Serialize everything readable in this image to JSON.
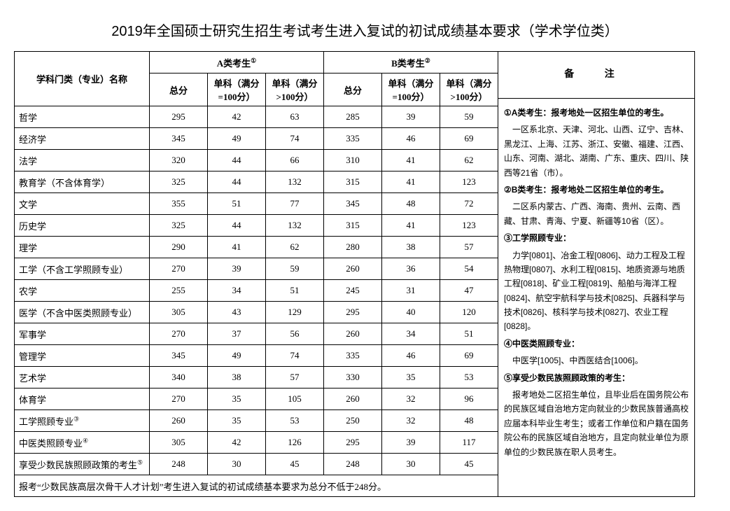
{
  "title": "2019年全国硕士研究生招生考试考生进入复试的初试成绩基本要求（学术学位类）",
  "headers": {
    "subject": "学科门类（专业）名称",
    "groupA": "A类考生",
    "groupB": "B类考生",
    "total": "总分",
    "sub100": "单科（满分=100分）",
    "subOver100": "单科（满分>100分）",
    "notes": "备    注"
  },
  "rows": [
    {
      "name": "哲学",
      "a": [
        295,
        42,
        63
      ],
      "b": [
        285,
        39,
        59
      ]
    },
    {
      "name": "经济学",
      "a": [
        345,
        49,
        74
      ],
      "b": [
        335,
        46,
        69
      ]
    },
    {
      "name": "法学",
      "a": [
        320,
        44,
        66
      ],
      "b": [
        310,
        41,
        62
      ]
    },
    {
      "name": "教育学（不含体育学）",
      "a": [
        325,
        44,
        132
      ],
      "b": [
        315,
        41,
        123
      ]
    },
    {
      "name": "文学",
      "a": [
        355,
        51,
        77
      ],
      "b": [
        345,
        48,
        72
      ]
    },
    {
      "name": "历史学",
      "a": [
        325,
        44,
        132
      ],
      "b": [
        315,
        41,
        123
      ]
    },
    {
      "name": "理学",
      "a": [
        290,
        41,
        62
      ],
      "b": [
        280,
        38,
        57
      ]
    },
    {
      "name": "工学（不含工学照顾专业）",
      "a": [
        270,
        39,
        59
      ],
      "b": [
        260,
        36,
        54
      ]
    },
    {
      "name": "农学",
      "a": [
        255,
        34,
        51
      ],
      "b": [
        245,
        31,
        47
      ]
    },
    {
      "name": "医学（不含中医类照顾专业）",
      "a": [
        305,
        43,
        129
      ],
      "b": [
        295,
        40,
        120
      ]
    },
    {
      "name": "军事学",
      "a": [
        270,
        37,
        56
      ],
      "b": [
        260,
        34,
        51
      ]
    },
    {
      "name": "管理学",
      "a": [
        345,
        49,
        74
      ],
      "b": [
        335,
        46,
        69
      ]
    },
    {
      "name": "艺术学",
      "a": [
        340,
        38,
        57
      ],
      "b": [
        330,
        35,
        53
      ]
    },
    {
      "name": "体育学",
      "a": [
        270,
        35,
        105
      ],
      "b": [
        260,
        32,
        96
      ]
    },
    {
      "name": "工学照顾专业",
      "sup": "③",
      "a": [
        260,
        35,
        53
      ],
      "b": [
        250,
        32,
        48
      ]
    },
    {
      "name": "中医类照顾专业",
      "sup": "④",
      "a": [
        305,
        42,
        126
      ],
      "b": [
        295,
        39,
        117
      ]
    },
    {
      "name": "享受少数民族照顾政策的考生",
      "sup": "⑤",
      "a": [
        248,
        30,
        45
      ],
      "b": [
        248,
        30,
        45
      ]
    }
  ],
  "footer": "报考“少数民族高层次骨干人才计划”考生进入复试的初试成绩基本要求为总分不低于248分。",
  "notes": {
    "n1h": "①A类考生：报考地处一区招生单位的考生。",
    "n1b": "一区系北京、天津、河北、山西、辽宁、吉林、黑龙江、上海、江苏、浙江、安徽、福建、江西、山东、河南、湖北、湖南、广东、重庆、四川、陕西等21省（市）。",
    "n2h": "②B类考生：报考地处二区招生单位的考生。",
    "n2b": "二区系内蒙古、广西、海南、贵州、云南、西藏、甘肃、青海、宁夏、新疆等10省（区）。",
    "n3h": "③工学照顾专业：",
    "n3b": "力学[0801]、冶金工程[0806]、动力工程及工程热物理[0807]、水利工程[0815]、地质资源与地质工程[0818]、矿业工程[0819]、船舶与海洋工程[0824]、航空宇航科学与技术[0825]、兵器科学与技术[0826]、核科学与技术[0827]、农业工程[0828]。",
    "n4h": "④中医类照顾专业：",
    "n4b": "中医学[1005]、中西医结合[1006]。",
    "n5h": "⑤享受少数民族照顾政策的考生：",
    "n5b": "报考地处二区招生单位，且毕业后在国务院公布的民族区域自治地方定向就业的少数民族普通高校应届本科毕业生考生；或者工作单位和户籍在国务院公布的民族区域自治地方，且定向就业单位为原单位的少数民族在职人员考生。"
  }
}
